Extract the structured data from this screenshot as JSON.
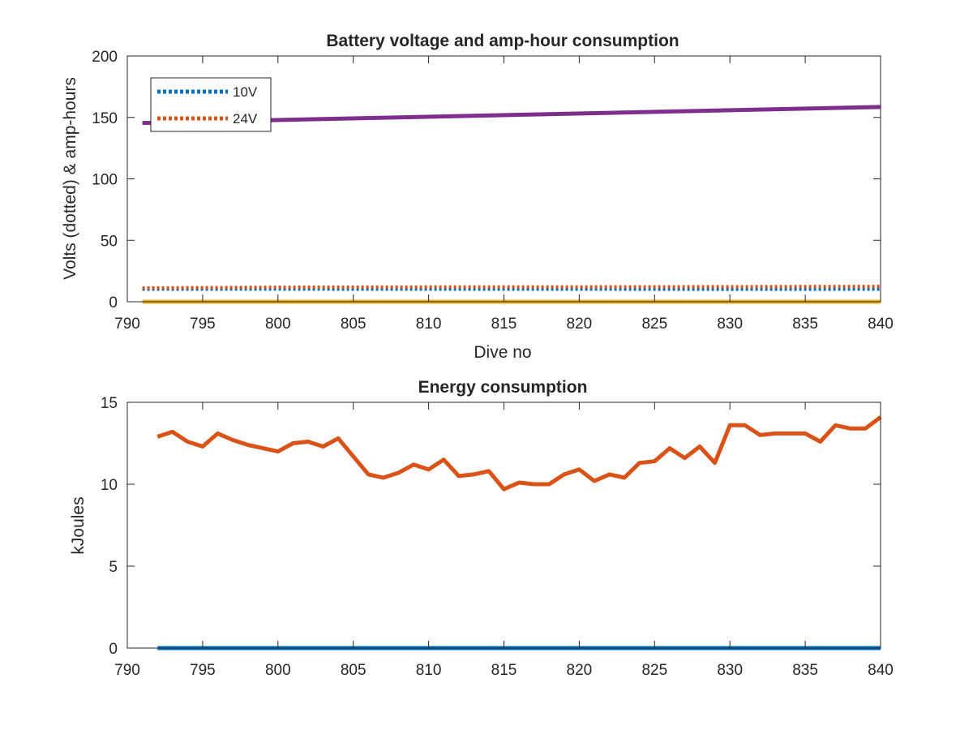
{
  "chart_data": [
    {
      "type": "line",
      "title": "Battery voltage and amp-hour consumption",
      "xlabel": "Dive no",
      "ylabel": "Volts (dotted) & amp-hours",
      "xlim": [
        790,
        840
      ],
      "ylim": [
        0,
        200
      ],
      "xticks": [
        790,
        795,
        800,
        805,
        810,
        815,
        820,
        825,
        830,
        835,
        840
      ],
      "yticks": [
        0,
        50,
        100,
        150,
        200
      ],
      "legend_position": "top-left",
      "series": [
        {
          "name": "10V",
          "style": "dotted",
          "color": "#0072BD",
          "x": [
            791,
            800,
            810,
            820,
            830,
            840
          ],
          "y": [
            10.2,
            10.3,
            10.2,
            10.2,
            10.1,
            10.2
          ]
        },
        {
          "name": "24V",
          "style": "dotted",
          "color": "#D95319",
          "x": [
            791,
            800,
            810,
            820,
            830,
            840
          ],
          "y": [
            11.2,
            11.8,
            12.0,
            12.1,
            12.2,
            12.5
          ]
        },
        {
          "style": "solid",
          "color": "#7E2F8E",
          "x": [
            791,
            840
          ],
          "y": [
            145.5,
            158.5
          ]
        },
        {
          "style": "solid",
          "color": "#EDB120",
          "x": [
            791,
            840
          ],
          "y": [
            0,
            0
          ]
        }
      ]
    },
    {
      "type": "line",
      "title": "Energy consumption",
      "xlabel": "",
      "ylabel": "kJoules",
      "xlim": [
        790,
        840
      ],
      "ylim": [
        0,
        15
      ],
      "xticks": [
        790,
        795,
        800,
        805,
        810,
        815,
        820,
        825,
        830,
        835,
        840
      ],
      "yticks": [
        0,
        5,
        10,
        15
      ],
      "series": [
        {
          "style": "solid",
          "color": "#0072BD",
          "x": [
            792,
            840
          ],
          "y": [
            0,
            0
          ]
        },
        {
          "style": "solid",
          "color": "#D95319",
          "x": [
            792,
            793,
            794,
            795,
            796,
            797,
            798,
            799,
            800,
            801,
            802,
            803,
            804,
            805,
            806,
            807,
            808,
            809,
            810,
            811,
            812,
            813,
            814,
            815,
            816,
            817,
            818,
            819,
            820,
            821,
            822,
            823,
            824,
            825,
            826,
            827,
            828,
            829,
            830,
            831,
            832,
            833,
            834,
            835,
            836,
            837,
            838,
            839,
            840
          ],
          "y": [
            12.9,
            13.2,
            12.6,
            12.3,
            13.1,
            12.7,
            12.4,
            12.2,
            12.0,
            12.5,
            12.6,
            12.3,
            12.8,
            11.7,
            10.6,
            10.4,
            10.7,
            11.2,
            10.9,
            11.5,
            10.5,
            10.6,
            10.8,
            9.7,
            10.1,
            10.0,
            10.0,
            10.6,
            10.9,
            10.2,
            10.6,
            10.4,
            11.3,
            11.4,
            12.2,
            11.6,
            12.3,
            11.3,
            13.6,
            13.6,
            13.0,
            13.1,
            13.1,
            13.1,
            12.6,
            13.6,
            13.4,
            13.4,
            14.1
          ]
        }
      ]
    }
  ]
}
